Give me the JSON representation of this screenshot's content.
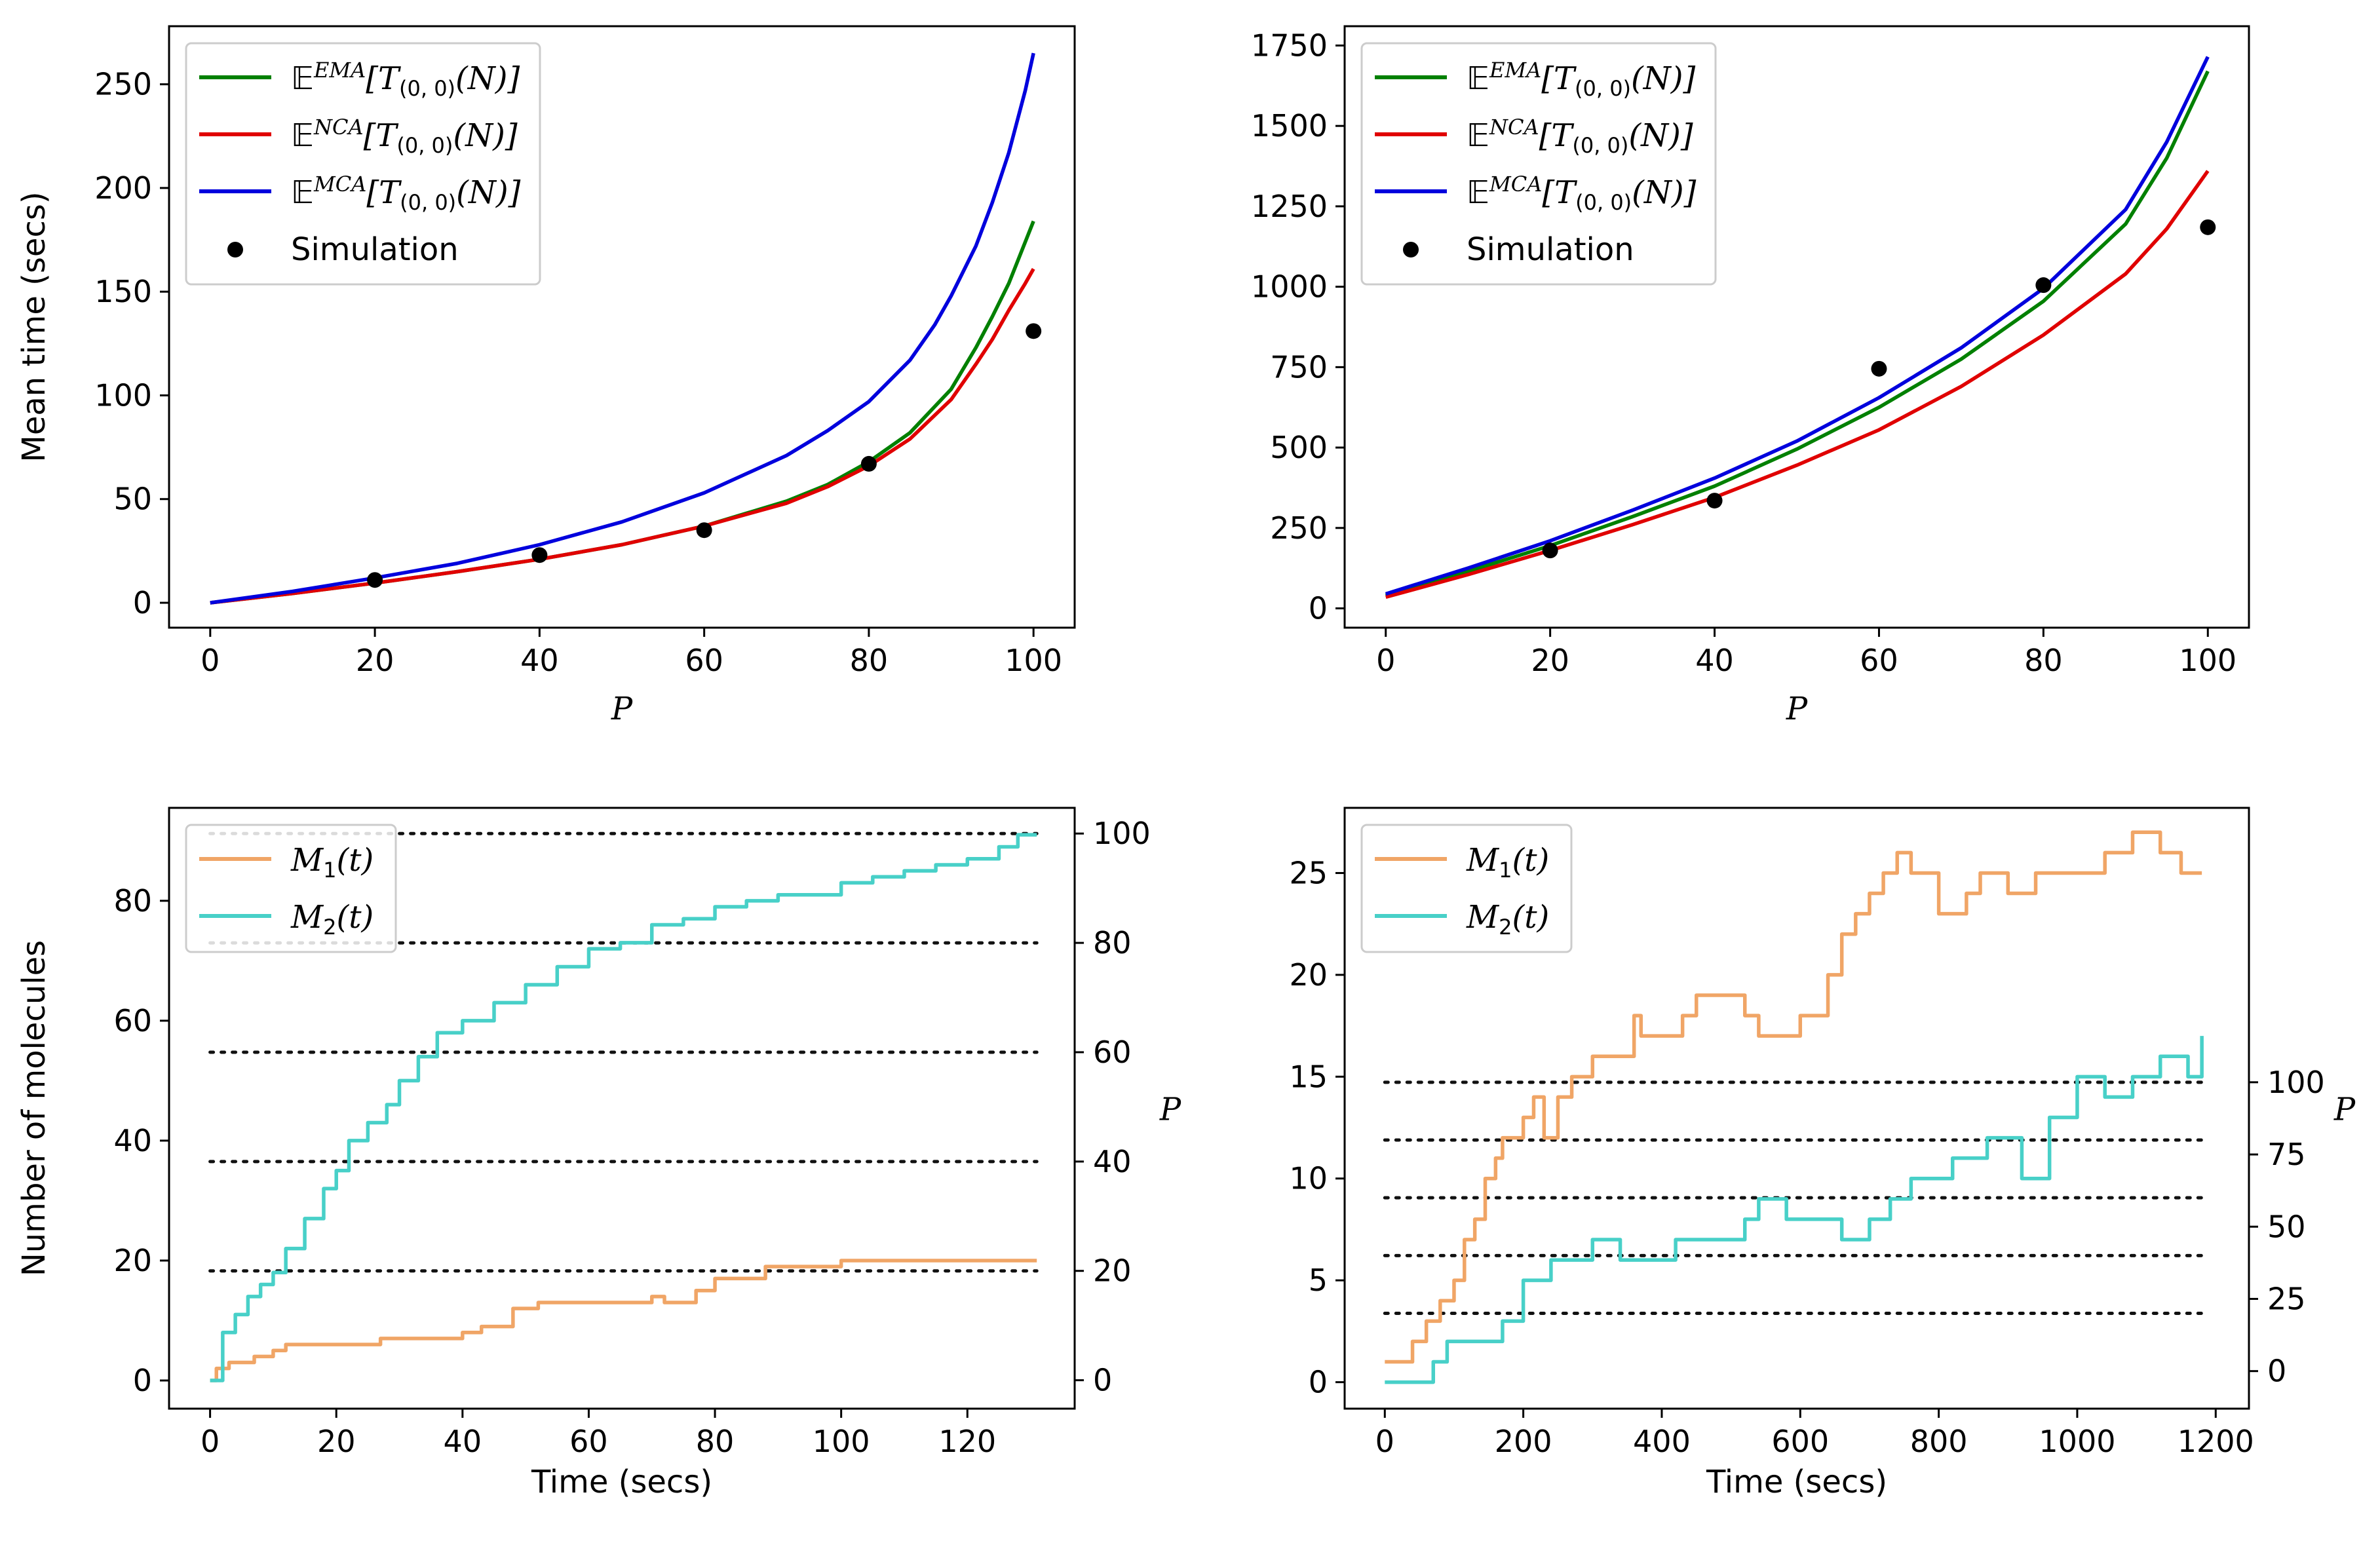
{
  "chart_data": [
    {
      "id": "top-left",
      "type": "line",
      "xlabel": "P",
      "ylabel": "Mean time (secs)",
      "xlim": [
        -5,
        105
      ],
      "ylim": [
        -12,
        278
      ],
      "xticks": [
        0,
        20,
        40,
        60,
        80,
        100
      ],
      "yticks": [
        0,
        50,
        100,
        150,
        200,
        250
      ],
      "legend_position": "top-left",
      "colors": {
        "EMA": "#008000",
        "NCA": "#e00000",
        "MCA": "#0000dd",
        "sim": "#000000"
      },
      "legend": [
        {
          "key": "EMA",
          "kind": "line",
          "pre": "𝔼",
          "sup": "EMA",
          "text": "[T",
          "sub": "(0, 0)",
          "post": "(N)]"
        },
        {
          "key": "NCA",
          "kind": "line",
          "pre": "𝔼",
          "sup": "NCA",
          "text": "[T",
          "sub": "(0, 0)",
          "post": "(N)]"
        },
        {
          "key": "MCA",
          "kind": "line",
          "pre": "𝔼",
          "sup": "MCA",
          "text": "[T",
          "sub": "(0, 0)",
          "post": "(N)]"
        },
        {
          "key": "sim",
          "kind": "dot",
          "label": "Simulation"
        }
      ],
      "series": [
        {
          "key": "EMA",
          "x": [
            0,
            10,
            20,
            30,
            40,
            50,
            60,
            70,
            75,
            80,
            85,
            90,
            93,
            95,
            97,
            99,
            100
          ],
          "y": [
            0,
            4.5,
            9.5,
            15,
            21,
            28,
            37,
            49,
            57,
            68,
            82,
            103,
            123,
            138,
            154,
            174,
            184
          ]
        },
        {
          "key": "NCA",
          "x": [
            0,
            10,
            20,
            30,
            40,
            50,
            60,
            70,
            75,
            80,
            85,
            90,
            93,
            95,
            97,
            99,
            100
          ],
          "y": [
            0,
            4.5,
            9.5,
            15,
            21,
            28,
            37,
            48,
            56,
            66,
            79,
            98,
            115,
            127,
            141,
            154,
            161
          ]
        },
        {
          "key": "MCA",
          "x": [
            0,
            10,
            20,
            30,
            40,
            50,
            60,
            70,
            75,
            80,
            85,
            88,
            90,
            93,
            95,
            97,
            99,
            100
          ],
          "y": [
            0,
            5.5,
            12,
            19,
            28,
            39,
            53,
            71,
            83,
            97,
            117,
            134,
            148,
            172,
            193,
            217,
            247,
            265
          ]
        },
        {
          "key": "sim",
          "x": [
            20,
            40,
            60,
            80,
            100
          ],
          "y": [
            11,
            23,
            35,
            67,
            131
          ]
        }
      ]
    },
    {
      "id": "top-right",
      "type": "line",
      "xlabel": "P",
      "ylabel": "",
      "xlim": [
        -5,
        105
      ],
      "ylim": [
        -60,
        1810
      ],
      "xticks": [
        0,
        20,
        40,
        60,
        80,
        100
      ],
      "yticks": [
        0,
        250,
        500,
        750,
        1000,
        1250,
        1500,
        1750
      ],
      "legend_position": "top-left",
      "colors": {
        "EMA": "#008000",
        "NCA": "#e00000",
        "MCA": "#0000dd",
        "sim": "#000000"
      },
      "legend": [
        {
          "key": "EMA",
          "kind": "line",
          "pre": "𝔼",
          "sup": "EMA",
          "text": "[T",
          "sub": "(0, 0)",
          "post": "(N)]"
        },
        {
          "key": "NCA",
          "kind": "line",
          "pre": "𝔼",
          "sup": "NCA",
          "text": "[T",
          "sub": "(0, 0)",
          "post": "(N)]"
        },
        {
          "key": "MCA",
          "kind": "line",
          "pre": "𝔼",
          "sup": "MCA",
          "text": "[T",
          "sub": "(0, 0)",
          "post": "(N)]"
        },
        {
          "key": "sim",
          "kind": "dot",
          "label": "Simulation"
        }
      ],
      "series": [
        {
          "key": "EMA",
          "x": [
            0,
            10,
            20,
            30,
            40,
            50,
            60,
            70,
            80,
            90,
            95,
            100
          ],
          "y": [
            40,
            115,
            195,
            285,
            380,
            495,
            625,
            775,
            955,
            1195,
            1400,
            1670
          ]
        },
        {
          "key": "NCA",
          "x": [
            0,
            10,
            20,
            30,
            40,
            50,
            60,
            70,
            80,
            90,
            95,
            100
          ],
          "y": [
            35,
            105,
            180,
            260,
            345,
            445,
            555,
            690,
            850,
            1040,
            1180,
            1360
          ]
        },
        {
          "key": "MCA",
          "x": [
            0,
            10,
            20,
            30,
            40,
            50,
            60,
            70,
            80,
            90,
            95,
            100
          ],
          "y": [
            45,
            125,
            210,
            305,
            405,
            520,
            655,
            810,
            995,
            1240,
            1450,
            1715
          ]
        },
        {
          "key": "sim",
          "x": [
            20,
            40,
            60,
            80,
            100
          ],
          "y": [
            180,
            335,
            745,
            1005,
            1185
          ]
        }
      ]
    },
    {
      "id": "bottom-left",
      "type": "line",
      "xlabel": "Time (secs)",
      "ylabel": "Number of molecules",
      "y2label": "P",
      "xlim": [
        -6.5,
        137
      ],
      "ylim": [
        -4.7,
        95.5
      ],
      "y2lim": [
        -5.2,
        104.7
      ],
      "xticks": [
        0,
        20,
        40,
        60,
        80,
        100,
        120
      ],
      "yticks": [
        0,
        20,
        40,
        60,
        80
      ],
      "y2ticks": [
        0,
        20,
        40,
        60,
        80,
        100
      ],
      "legend_position": "top-left",
      "colors": {
        "M1": "#f0a566",
        "M2": "#48d0c8",
        "dotted": "#111111"
      },
      "legend": [
        {
          "key": "M1",
          "kind": "line",
          "var": "M",
          "sub": "1",
          "post": "(t)"
        },
        {
          "key": "M2",
          "kind": "line",
          "var": "M",
          "sub": "2",
          "post": "(t)"
        }
      ],
      "dotted_levels_P": [
        20,
        40,
        60,
        80,
        100
      ],
      "dotted_xrange": [
        0,
        131
      ],
      "series": [
        {
          "key": "M1",
          "step": true,
          "x": [
            0,
            1,
            3,
            7,
            10,
            12,
            15,
            22,
            27,
            33,
            40,
            43,
            48,
            52,
            62,
            70,
            72,
            77,
            80,
            85,
            88,
            92,
            100,
            131
          ],
          "y": [
            0,
            2,
            3,
            4,
            5,
            6,
            6,
            6,
            7,
            7,
            8,
            9,
            12,
            13,
            13,
            14,
            13,
            15,
            17,
            17,
            19,
            19,
            20,
            20
          ]
        },
        {
          "key": "M2",
          "step": true,
          "x": [
            0,
            2,
            4,
            6,
            8,
            10,
            12,
            15,
            18,
            20,
            22,
            25,
            28,
            30,
            33,
            36,
            38,
            40,
            45,
            50,
            55,
            60,
            65,
            70,
            75,
            80,
            85,
            90,
            95,
            100,
            105,
            110,
            115,
            120,
            125,
            128,
            131
          ],
          "y": [
            0,
            8,
            11,
            14,
            16,
            18,
            22,
            27,
            32,
            35,
            40,
            43,
            46,
            50,
            54,
            58,
            58,
            60,
            63,
            66,
            69,
            72,
            73,
            76,
            77,
            79,
            80,
            81,
            81,
            83,
            84,
            85,
            86,
            87,
            89,
            91,
            91
          ]
        }
      ]
    },
    {
      "id": "bottom-right",
      "type": "line",
      "xlabel": "Time (secs)",
      "ylabel": "",
      "y2label": "P",
      "xlim": [
        -58,
        1248
      ],
      "ylim": [
        -1.3,
        28.2
      ],
      "y2lim": [
        -13,
        195
      ],
      "xticks": [
        0,
        200,
        400,
        600,
        800,
        1000,
        1200
      ],
      "yticks": [
        0,
        5,
        10,
        15,
        20,
        25
      ],
      "y2ticks": [
        0,
        25,
        50,
        75,
        100
      ],
      "legend_position": "top-left",
      "colors": {
        "M1": "#f0a566",
        "M2": "#48d0c8",
        "dotted": "#111111"
      },
      "legend": [
        {
          "key": "M1",
          "kind": "line",
          "var": "M",
          "sub": "1",
          "post": "(t)"
        },
        {
          "key": "M2",
          "kind": "line",
          "var": "M",
          "sub": "2",
          "post": "(t)"
        }
      ],
      "dotted_levels_P": [
        20,
        40,
        60,
        80,
        100
      ],
      "dotted_xrange": [
        0,
        1180
      ],
      "series": [
        {
          "key": "M1",
          "step": true,
          "x": [
            0,
            20,
            40,
            60,
            80,
            100,
            115,
            130,
            145,
            160,
            170,
            180,
            200,
            215,
            230,
            250,
            270,
            300,
            330,
            360,
            370,
            400,
            430,
            450,
            480,
            520,
            540,
            560,
            600,
            640,
            660,
            680,
            700,
            720,
            740,
            760,
            800,
            840,
            860,
            900,
            940,
            980,
            1040,
            1080,
            1120,
            1150,
            1180
          ],
          "y": [
            1,
            1,
            2,
            3,
            4,
            5,
            7,
            8,
            10,
            11,
            12,
            12,
            13,
            14,
            12,
            14,
            15,
            16,
            16,
            18,
            17,
            17,
            18,
            19,
            19,
            18,
            17,
            17,
            18,
            20,
            22,
            23,
            24,
            25,
            26,
            25,
            23,
            24,
            25,
            24,
            25,
            25,
            26,
            27,
            26,
            25,
            25
          ]
        },
        {
          "key": "M2",
          "step": true,
          "x": [
            0,
            70,
            90,
            170,
            200,
            240,
            300,
            340,
            420,
            520,
            540,
            580,
            660,
            700,
            730,
            760,
            820,
            870,
            920,
            960,
            1000,
            1040,
            1080,
            1120,
            1160,
            1180
          ],
          "y": [
            0,
            1,
            2,
            3,
            5,
            6,
            7,
            6,
            7,
            8,
            9,
            8,
            7,
            8,
            9,
            10,
            11,
            12,
            10,
            13,
            15,
            14,
            15,
            16,
            15,
            17
          ]
        }
      ]
    }
  ]
}
